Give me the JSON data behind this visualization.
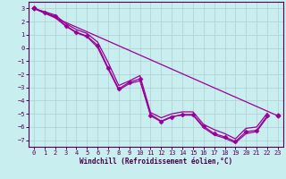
{
  "xlabel": "Windchill (Refroidissement éolien,°C)",
  "background_color": "#c8eef0",
  "grid_color": "#b0cdd0",
  "line_color": "#990099",
  "xlim": [
    -0.5,
    23.5
  ],
  "ylim": [
    -7.5,
    3.5
  ],
  "yticks": [
    3,
    2,
    1,
    0,
    -1,
    -2,
    -3,
    -4,
    -5,
    -6,
    -7
  ],
  "xticks": [
    0,
    1,
    2,
    3,
    4,
    5,
    6,
    7,
    8,
    9,
    10,
    11,
    12,
    13,
    14,
    15,
    16,
    17,
    18,
    19,
    20,
    21,
    22,
    23
  ],
  "series_main": {
    "x": [
      0,
      1,
      2,
      3,
      4,
      5,
      6,
      7,
      8,
      9,
      10,
      11,
      12,
      13,
      14,
      15,
      16,
      17,
      18,
      19,
      20,
      21,
      22
    ],
    "y": [
      3.0,
      2.7,
      2.4,
      1.7,
      1.2,
      0.9,
      0.2,
      -1.5,
      -3.1,
      -2.6,
      -2.35,
      -5.15,
      -5.6,
      -5.25,
      -5.05,
      -5.05,
      -5.95,
      -6.5,
      -6.75,
      -7.1,
      -6.35,
      -6.25,
      -5.15
    ]
  },
  "series_upper": {
    "x": [
      0,
      1,
      2,
      3,
      4,
      5,
      6,
      7,
      8,
      9,
      10,
      11,
      12,
      13,
      14,
      15,
      16,
      17,
      18,
      19,
      20,
      21,
      22
    ],
    "y": [
      3.0,
      2.75,
      2.5,
      1.85,
      1.4,
      1.1,
      0.45,
      -1.1,
      -2.85,
      -2.5,
      -2.1,
      -4.9,
      -5.3,
      -5.0,
      -4.85,
      -4.85,
      -5.8,
      -6.2,
      -6.5,
      -6.9,
      -6.1,
      -6.0,
      -4.95
    ]
  },
  "series_lower": {
    "x": [
      0,
      1,
      2,
      3,
      4,
      5,
      6,
      7,
      8,
      9,
      10,
      11,
      12,
      13,
      14,
      15,
      16,
      17,
      18,
      19,
      20,
      21,
      22
    ],
    "y": [
      3.0,
      2.65,
      2.3,
      1.65,
      1.15,
      0.85,
      0.05,
      -1.6,
      -3.2,
      -2.7,
      -2.5,
      -5.05,
      -5.55,
      -5.2,
      -5.1,
      -5.1,
      -6.05,
      -6.6,
      -6.85,
      -7.2,
      -6.5,
      -6.35,
      -5.25
    ]
  },
  "series_diagonal": {
    "x": [
      0,
      23
    ],
    "y": [
      3.0,
      -5.15
    ]
  }
}
